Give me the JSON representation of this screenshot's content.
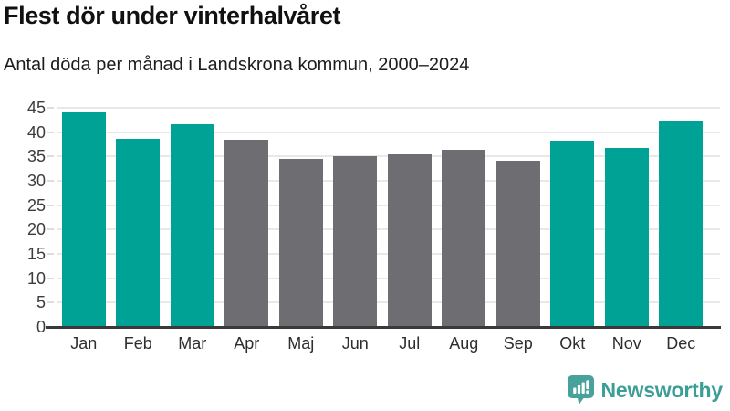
{
  "chart_data": {
    "type": "bar",
    "title": "Flest dör under vinterhalvåret",
    "subtitle": "Antal döda per månad i Landskrona kommun, 2000–2024",
    "categories": [
      "Jan",
      "Feb",
      "Mar",
      "Apr",
      "Maj",
      "Jun",
      "Jul",
      "Aug",
      "Sep",
      "Okt",
      "Nov",
      "Dec"
    ],
    "values": [
      44.0,
      38.6,
      41.7,
      38.4,
      34.5,
      35.0,
      35.5,
      36.3,
      34.1,
      38.2,
      36.8,
      42.2
    ],
    "bar_colors": [
      "teal",
      "teal",
      "teal",
      "gray",
      "gray",
      "gray",
      "gray",
      "gray",
      "gray",
      "teal",
      "teal",
      "teal"
    ],
    "colors": {
      "teal": "#00a296",
      "gray": "#6d6d72",
      "gridline": "#e8e8e8",
      "baseline": "#3a3a3a",
      "axis_text": "#3c3c3c"
    },
    "xlabel": "",
    "ylabel": "",
    "ylim": [
      0,
      45
    ],
    "yticks": [
      0,
      5,
      10,
      15,
      20,
      25,
      30,
      35,
      40,
      45
    ],
    "grid": true,
    "legend": false
  },
  "footer": {
    "brand": "Newsworthy",
    "brand_color": "#3b9e97",
    "logo_icon": "newsworthy-bar-chart-bubble-icon"
  }
}
